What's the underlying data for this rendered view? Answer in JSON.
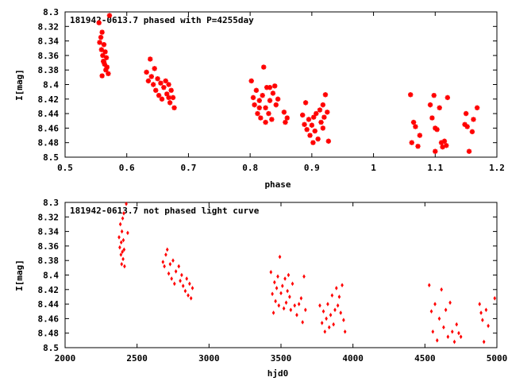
{
  "chart_data": [
    {
      "type": "scatter",
      "title": "181942-0613.7 phased with P=4255day",
      "xlabel": "phase",
      "ylabel": "I[mag]",
      "xlim": [
        0.5,
        1.2
      ],
      "ylim": [
        8.3,
        8.5
      ],
      "y_inverted": true,
      "xticks": [
        "0.5",
        "0.6",
        "0.7",
        "0.8",
        "0.9",
        "1",
        "1.1",
        "1.2"
      ],
      "yticks": [
        "8.3",
        "8.32",
        "8.34",
        "8.36",
        "8.38",
        "8.4",
        "8.42",
        "8.44",
        "8.46",
        "8.48",
        "8.5"
      ],
      "marker": "star",
      "color": "#ff0000",
      "points": [
        [
          0.555,
          8.315
        ],
        [
          0.556,
          8.342
        ],
        [
          0.558,
          8.335
        ],
        [
          0.559,
          8.352
        ],
        [
          0.56,
          8.328
        ],
        [
          0.561,
          8.36
        ],
        [
          0.562,
          8.368
        ],
        [
          0.563,
          8.345
        ],
        [
          0.564,
          8.372
        ],
        [
          0.565,
          8.355
        ],
        [
          0.566,
          8.38
        ],
        [
          0.567,
          8.363
        ],
        [
          0.568,
          8.376
        ],
        [
          0.57,
          8.385
        ],
        [
          0.572,
          8.305
        ],
        [
          0.56,
          8.388
        ],
        [
          0.563,
          8.369
        ],
        [
          0.632,
          8.383
        ],
        [
          0.635,
          8.395
        ],
        [
          0.638,
          8.365
        ],
        [
          0.64,
          8.389
        ],
        [
          0.643,
          8.4
        ],
        [
          0.645,
          8.378
        ],
        [
          0.647,
          8.408
        ],
        [
          0.65,
          8.392
        ],
        [
          0.652,
          8.415
        ],
        [
          0.655,
          8.398
        ],
        [
          0.657,
          8.42
        ],
        [
          0.66,
          8.404
        ],
        [
          0.663,
          8.395
        ],
        [
          0.665,
          8.413
        ],
        [
          0.668,
          8.4
        ],
        [
          0.67,
          8.425
        ],
        [
          0.672,
          8.408
        ],
        [
          0.675,
          8.418
        ],
        [
          0.677,
          8.432
        ],
        [
          0.668,
          8.418
        ],
        [
          0.802,
          8.395
        ],
        [
          0.805,
          8.418
        ],
        [
          0.807,
          8.428
        ],
        [
          0.81,
          8.408
        ],
        [
          0.812,
          8.44
        ],
        [
          0.815,
          8.422
        ],
        [
          0.817,
          8.446
        ],
        [
          0.82,
          8.415
        ],
        [
          0.822,
          8.376
        ],
        [
          0.825,
          8.432
        ],
        [
          0.827,
          8.404
        ],
        [
          0.83,
          8.44
        ],
        [
          0.832,
          8.422
        ],
        [
          0.835,
          8.448
        ],
        [
          0.837,
          8.412
        ],
        [
          0.84,
          8.402
        ],
        [
          0.842,
          8.428
        ],
        [
          0.845,
          8.42
        ],
        [
          0.855,
          8.438
        ],
        [
          0.857,
          8.452
        ],
        [
          0.86,
          8.446
        ],
        [
          0.815,
          8.432
        ],
        [
          0.825,
          8.452
        ],
        [
          0.832,
          8.404
        ],
        [
          0.885,
          8.442
        ],
        [
          0.888,
          8.455
        ],
        [
          0.89,
          8.425
        ],
        [
          0.892,
          8.462
        ],
        [
          0.895,
          8.448
        ],
        [
          0.897,
          8.47
        ],
        [
          0.9,
          8.456
        ],
        [
          0.902,
          8.48
        ],
        [
          0.905,
          8.464
        ],
        [
          0.907,
          8.44
        ],
        [
          0.91,
          8.475
        ],
        [
          0.913,
          8.435
        ],
        [
          0.915,
          8.452
        ],
        [
          0.918,
          8.428
        ],
        [
          0.92,
          8.445
        ],
        [
          0.922,
          8.414
        ],
        [
          0.925,
          8.438
        ],
        [
          0.927,
          8.478
        ],
        [
          0.903,
          8.445
        ],
        [
          0.918,
          8.46
        ],
        [
          1.06,
          8.414
        ],
        [
          1.062,
          8.48
        ],
        [
          1.065,
          8.452
        ],
        [
          1.068,
          8.458
        ],
        [
          1.072,
          8.485
        ],
        [
          1.075,
          8.47
        ],
        [
          1.092,
          8.428
        ],
        [
          1.095,
          8.446
        ],
        [
          1.098,
          8.415
        ],
        [
          1.1,
          8.492
        ],
        [
          1.103,
          8.462
        ],
        [
          1.107,
          8.432
        ],
        [
          1.11,
          8.48
        ],
        [
          1.112,
          8.486
        ],
        [
          1.115,
          8.478
        ],
        [
          1.118,
          8.484
        ],
        [
          1.12,
          8.418
        ],
        [
          1.148,
          8.455
        ],
        [
          1.15,
          8.44
        ],
        [
          1.152,
          8.458
        ],
        [
          1.155,
          8.492
        ],
        [
          1.16,
          8.465
        ],
        [
          1.162,
          8.448
        ],
        [
          1.168,
          8.432
        ],
        [
          1.1,
          8.46
        ]
      ]
    },
    {
      "type": "scatter",
      "title": "181942-0613.7 not phased light curve",
      "xlabel": "hjd0",
      "ylabel": "I[mag]",
      "xlim": [
        2000,
        5000
      ],
      "ylim": [
        8.3,
        8.5
      ],
      "y_inverted": true,
      "xticks": [
        "2000",
        "2500",
        "3000",
        "3500",
        "4000",
        "4500",
        "5000"
      ],
      "yticks": [
        "8.3",
        "8.32",
        "8.34",
        "8.36",
        "8.38",
        "8.4",
        "8.42",
        "8.44",
        "8.46",
        "8.48",
        "8.5"
      ],
      "marker": "diamond",
      "color": "#ff0000",
      "points": [
        [
          2375,
          8.348
        ],
        [
          2380,
          8.362
        ],
        [
          2384,
          8.33
        ],
        [
          2388,
          8.372
        ],
        [
          2390,
          8.355
        ],
        [
          2393,
          8.385
        ],
        [
          2395,
          8.34
        ],
        [
          2398,
          8.368
        ],
        [
          2400,
          8.322
        ],
        [
          2403,
          8.378
        ],
        [
          2405,
          8.352
        ],
        [
          2408,
          8.315
        ],
        [
          2410,
          8.365
        ],
        [
          2413,
          8.388
        ],
        [
          2425,
          8.302
        ],
        [
          2435,
          8.342
        ],
        [
          2680,
          8.382
        ],
        [
          2690,
          8.388
        ],
        [
          2700,
          8.372
        ],
        [
          2710,
          8.365
        ],
        [
          2720,
          8.398
        ],
        [
          2730,
          8.385
        ],
        [
          2740,
          8.405
        ],
        [
          2750,
          8.38
        ],
        [
          2760,
          8.412
        ],
        [
          2770,
          8.395
        ],
        [
          2790,
          8.388
        ],
        [
          2800,
          8.408
        ],
        [
          2810,
          8.4
        ],
        [
          2820,
          8.415
        ],
        [
          2835,
          8.422
        ],
        [
          2845,
          8.405
        ],
        [
          2855,
          8.428
        ],
        [
          2865,
          8.412
        ],
        [
          2875,
          8.432
        ],
        [
          2885,
          8.418
        ],
        [
          3430,
          8.396
        ],
        [
          3440,
          8.426
        ],
        [
          3448,
          8.452
        ],
        [
          3455,
          8.41
        ],
        [
          3462,
          8.436
        ],
        [
          3470,
          8.418
        ],
        [
          3478,
          8.402
        ],
        [
          3485,
          8.442
        ],
        [
          3492,
          8.375
        ],
        [
          3500,
          8.425
        ],
        [
          3510,
          8.415
        ],
        [
          3520,
          8.446
        ],
        [
          3528,
          8.405
        ],
        [
          3536,
          8.438
        ],
        [
          3545,
          8.422
        ],
        [
          3552,
          8.4
        ],
        [
          3560,
          8.43
        ],
        [
          3568,
          8.448
        ],
        [
          3580,
          8.412
        ],
        [
          3595,
          8.442
        ],
        [
          3610,
          8.455
        ],
        [
          3625,
          8.44
        ],
        [
          3640,
          8.432
        ],
        [
          3650,
          8.465
        ],
        [
          3660,
          8.402
        ],
        [
          3670,
          8.448
        ],
        [
          3770,
          8.442
        ],
        [
          3785,
          8.466
        ],
        [
          3795,
          8.45
        ],
        [
          3805,
          8.478
        ],
        [
          3815,
          8.46
        ],
        [
          3825,
          8.44
        ],
        [
          3835,
          8.472
        ],
        [
          3845,
          8.455
        ],
        [
          3855,
          8.428
        ],
        [
          3865,
          8.468
        ],
        [
          3875,
          8.448
        ],
        [
          3885,
          8.418
        ],
        [
          3895,
          8.442
        ],
        [
          3905,
          8.43
        ],
        [
          3915,
          8.452
        ],
        [
          3925,
          8.414
        ],
        [
          3935,
          8.462
        ],
        [
          3945,
          8.478
        ],
        [
          4530,
          8.414
        ],
        [
          4545,
          8.45
        ],
        [
          4555,
          8.478
        ],
        [
          4570,
          8.44
        ],
        [
          4585,
          8.49
        ],
        [
          4600,
          8.46
        ],
        [
          4615,
          8.42
        ],
        [
          4630,
          8.472
        ],
        [
          4645,
          8.448
        ],
        [
          4660,
          8.485
        ],
        [
          4675,
          8.438
        ],
        [
          4690,
          8.478
        ],
        [
          4705,
          8.492
        ],
        [
          4720,
          8.468
        ],
        [
          4735,
          8.48
        ],
        [
          4750,
          8.485
        ],
        [
          4880,
          8.44
        ],
        [
          4890,
          8.452
        ],
        [
          4900,
          8.462
        ],
        [
          4910,
          8.492
        ],
        [
          4925,
          8.448
        ],
        [
          4940,
          8.47
        ],
        [
          4985,
          8.432
        ]
      ]
    }
  ]
}
